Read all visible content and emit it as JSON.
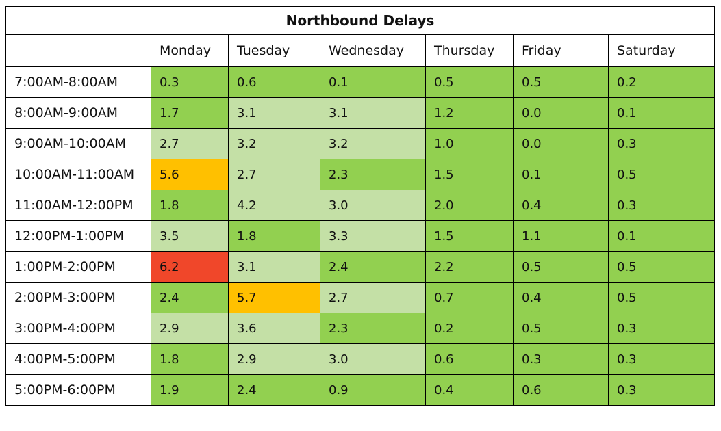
{
  "chart_data": {
    "type": "table",
    "title": "Northbound Delays",
    "columns": [
      "Monday",
      "Tuesday",
      "Wednesday",
      "Thursday",
      "Friday",
      "Saturday"
    ],
    "rows": [
      {
        "label": "7:00AM-8:00AM",
        "values": [
          "0.3",
          "0.6",
          "0.1",
          "0.5",
          "0.5",
          "0.2"
        ]
      },
      {
        "label": "8:00AM-9:00AM",
        "values": [
          "1.7",
          "3.1",
          "3.1",
          "1.2",
          "0.0",
          "0.1"
        ]
      },
      {
        "label": "9:00AM-10:00AM",
        "values": [
          "2.7",
          "3.2",
          "3.2",
          "1.0",
          "0.0",
          "0.3"
        ]
      },
      {
        "label": "10:00AM-11:00AM",
        "values": [
          "5.6",
          "2.7",
          "2.3",
          "1.5",
          "0.1",
          "0.5"
        ]
      },
      {
        "label": "11:00AM-12:00PM",
        "values": [
          "1.8",
          "4.2",
          "3.0",
          "2.0",
          "0.4",
          "0.3"
        ]
      },
      {
        "label": "12:00PM-1:00PM",
        "values": [
          "3.5",
          "1.8",
          "3.3",
          "1.5",
          "1.1",
          "0.1"
        ]
      },
      {
        "label": "1:00PM-2:00PM",
        "values": [
          "6.2",
          "3.1",
          "2.4",
          "2.2",
          "0.5",
          "0.5"
        ]
      },
      {
        "label": "2:00PM-3:00PM",
        "values": [
          "2.4",
          "5.7",
          "2.7",
          "0.7",
          "0.4",
          "0.5"
        ]
      },
      {
        "label": "3:00PM-4:00PM",
        "values": [
          "2.9",
          "3.6",
          "2.3",
          "0.2",
          "0.5",
          "0.3"
        ]
      },
      {
        "label": "4:00PM-5:00PM",
        "values": [
          "1.8",
          "2.9",
          "3.0",
          "0.6",
          "0.3",
          "0.3"
        ]
      },
      {
        "label": "5:00PM-6:00PM",
        "values": [
          "1.9",
          "2.4",
          "0.9",
          "0.4",
          "0.6",
          "0.3"
        ]
      }
    ],
    "colors": {
      "dark_green": "#92d050",
      "light_green": "#c4e0a6",
      "amber": "#ffc000",
      "red": "#f0472a",
      "header_bg": "#ffffff",
      "border": "#000000"
    },
    "cell_colors": [
      [
        "dark_green",
        "dark_green",
        "dark_green",
        "dark_green",
        "dark_green",
        "dark_green"
      ],
      [
        "dark_green",
        "light_green",
        "light_green",
        "dark_green",
        "dark_green",
        "dark_green"
      ],
      [
        "light_green",
        "light_green",
        "light_green",
        "dark_green",
        "dark_green",
        "dark_green"
      ],
      [
        "amber",
        "light_green",
        "dark_green",
        "dark_green",
        "dark_green",
        "dark_green"
      ],
      [
        "dark_green",
        "light_green",
        "light_green",
        "dark_green",
        "dark_green",
        "dark_green"
      ],
      [
        "light_green",
        "dark_green",
        "light_green",
        "dark_green",
        "dark_green",
        "dark_green"
      ],
      [
        "red",
        "light_green",
        "dark_green",
        "dark_green",
        "dark_green",
        "dark_green"
      ],
      [
        "dark_green",
        "amber",
        "light_green",
        "dark_green",
        "dark_green",
        "dark_green"
      ],
      [
        "light_green",
        "light_green",
        "dark_green",
        "dark_green",
        "dark_green",
        "dark_green"
      ],
      [
        "dark_green",
        "light_green",
        "light_green",
        "dark_green",
        "dark_green",
        "dark_green"
      ],
      [
        "dark_green",
        "dark_green",
        "dark_green",
        "dark_green",
        "dark_green",
        "dark_green"
      ]
    ]
  }
}
